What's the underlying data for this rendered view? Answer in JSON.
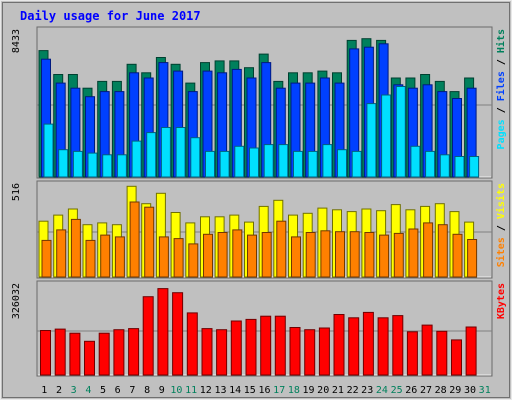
{
  "title": "Daily usage for June 2017",
  "colors": {
    "outer_bg": "#c0c0c0",
    "panel_bg": "#c0c0c0",
    "title": "#0000ff",
    "hits": "#00805c",
    "files": "#0040ff",
    "pages": "#00e0ff",
    "visits": "#ffff00",
    "sites": "#ff8000",
    "kbytes": "#ff0000",
    "weekend_label": "#00805c",
    "weekday_label": "#000000"
  },
  "chart_data": [
    {
      "type": "bar",
      "title": "Daily usage for June 2017",
      "panel": "hits-files-pages",
      "axis_label": "8433",
      "ylim": [
        0,
        8433
      ],
      "legend": {
        "position": "right",
        "items": [
          "Pages",
          "Files",
          "Hits"
        ],
        "separator": "/"
      },
      "categories": [
        "1",
        "2",
        "3",
        "4",
        "5",
        "6",
        "7",
        "8",
        "9",
        "10",
        "11",
        "12",
        "13",
        "14",
        "15",
        "16",
        "17",
        "18",
        "19",
        "20",
        "21",
        "22",
        "23",
        "24",
        "25",
        "26",
        "27",
        "28",
        "29",
        "30",
        "31"
      ],
      "weekend": [
        3,
        4,
        10,
        11,
        17,
        18,
        24,
        25,
        31
      ],
      "series": [
        {
          "name": "Hits",
          "values": [
            7400,
            6000,
            6000,
            5200,
            5600,
            5600,
            6600,
            6100,
            7000,
            6600,
            5500,
            6700,
            6800,
            6800,
            6400,
            7200,
            5600,
            6100,
            6100,
            6200,
            6100,
            8000,
            8100,
            8000,
            5800,
            5800,
            6000,
            5600,
            5000,
            5800,
            0
          ]
        },
        {
          "name": "Files",
          "values": [
            6900,
            5500,
            5200,
            4700,
            5000,
            5000,
            6100,
            5800,
            6700,
            6200,
            5000,
            6200,
            6100,
            6300,
            5800,
            6700,
            5200,
            5500,
            5500,
            5800,
            5500,
            7500,
            7600,
            7800,
            5400,
            5200,
            5400,
            5000,
            4600,
            5200,
            0
          ]
        },
        {
          "name": "Pages",
          "values": [
            3100,
            1600,
            1500,
            1400,
            1300,
            1300,
            2100,
            2600,
            2900,
            2900,
            2300,
            1500,
            1500,
            1800,
            1700,
            1900,
            1900,
            1500,
            1500,
            1900,
            1600,
            1500,
            4300,
            4800,
            5300,
            1800,
            1500,
            1300,
            1200,
            1200,
            0
          ]
        }
      ]
    },
    {
      "type": "bar",
      "panel": "visits-sites",
      "axis_label": "516",
      "ylim": [
        0,
        516
      ],
      "legend": {
        "position": "right",
        "items": [
          "Sites",
          "Visits"
        ],
        "separator": "/"
      },
      "categories": [
        "1",
        "2",
        "3",
        "4",
        "5",
        "6",
        "7",
        "8",
        "9",
        "10",
        "11",
        "12",
        "13",
        "14",
        "15",
        "16",
        "17",
        "18",
        "19",
        "20",
        "21",
        "22",
        "23",
        "24",
        "25",
        "26",
        "27",
        "28",
        "29",
        "30",
        "31"
      ],
      "series": [
        {
          "name": "Visits",
          "values": [
            320,
            355,
            390,
            300,
            310,
            300,
            520,
            420,
            480,
            370,
            310,
            345,
            345,
            355,
            315,
            405,
            440,
            355,
            365,
            395,
            385,
            375,
            390,
            380,
            415,
            385,
            405,
            420,
            375,
            315,
            0
          ]
        },
        {
          "name": "Sites",
          "values": [
            210,
            270,
            330,
            210,
            240,
            230,
            430,
            400,
            230,
            220,
            190,
            245,
            255,
            270,
            240,
            255,
            320,
            230,
            255,
            265,
            260,
            260,
            255,
            240,
            250,
            275,
            310,
            300,
            245,
            215,
            0
          ]
        }
      ]
    },
    {
      "type": "bar",
      "panel": "kbytes",
      "axis_label": "326032",
      "ylim": [
        0,
        326032
      ],
      "legend": {
        "position": "right",
        "items": [
          "KBytes"
        ],
        "separator": "/"
      },
      "categories": [
        "1",
        "2",
        "3",
        "4",
        "5",
        "6",
        "7",
        "8",
        "9",
        "10",
        "11",
        "12",
        "13",
        "14",
        "15",
        "16",
        "17",
        "18",
        "19",
        "20",
        "21",
        "22",
        "23",
        "24",
        "25",
        "26",
        "27",
        "28",
        "29",
        "30",
        "31"
      ],
      "series": [
        {
          "name": "KBytes",
          "values": [
            165000,
            170000,
            155000,
            125000,
            155000,
            168000,
            172000,
            290000,
            320000,
            305000,
            230000,
            172000,
            168000,
            200000,
            206000,
            218000,
            218000,
            176000,
            168000,
            174000,
            224000,
            212000,
            232000,
            212000,
            220000,
            160000,
            185000,
            162000,
            130000,
            178000,
            0
          ]
        }
      ]
    }
  ]
}
